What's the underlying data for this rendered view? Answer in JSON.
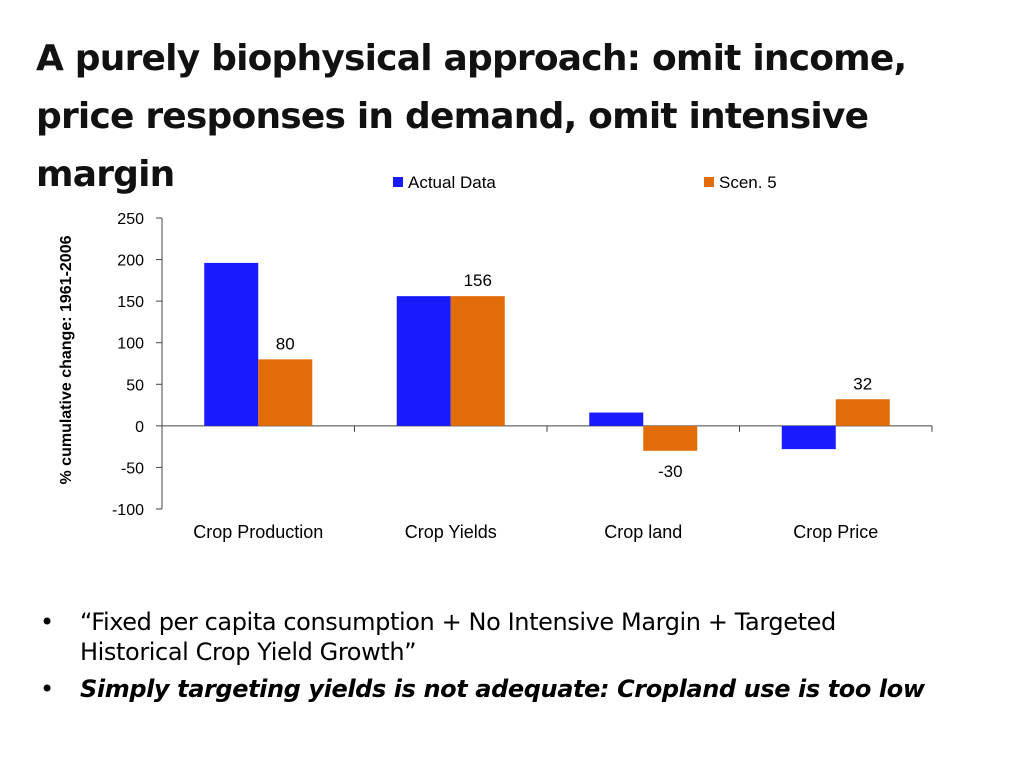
{
  "slide": {
    "title": "A purely biophysical approach: omit income, price responses in demand, omit intensive margin",
    "bullets": [
      {
        "marker": "•",
        "text": "“Fixed per capita consumption + No Intensive Margin + Targeted Historical Crop Yield Growth”"
      },
      {
        "marker": "•",
        "text": "Simply targeting yields is not adequate: Cropland use is too low"
      }
    ]
  },
  "chart_data": {
    "type": "bar",
    "categories": [
      "Crop Production",
      "Crop Yields",
      "Crop land",
      "Crop Price"
    ],
    "series": [
      {
        "name": "Actual Data",
        "values": [
          196,
          156,
          16,
          -28
        ],
        "color": "#1a1aff"
      },
      {
        "name": "Scen. 5",
        "values": [
          80,
          156,
          -30,
          32
        ],
        "color": "#e36c0a"
      }
    ],
    "data_labels": [
      {
        "series": 1,
        "index": 0,
        "text": "80"
      },
      {
        "series": 1,
        "index": 1,
        "text": "156"
      },
      {
        "series": 1,
        "index": 2,
        "text": "-30"
      },
      {
        "series": 1,
        "index": 3,
        "text": "32"
      }
    ],
    "ylabel": "% cumulative change: 1961-2006",
    "ylim": [
      -100,
      250
    ],
    "yticks": [
      250,
      200,
      150,
      100,
      50,
      0,
      -50,
      -100
    ],
    "legend_position": "top",
    "grid": false
  }
}
